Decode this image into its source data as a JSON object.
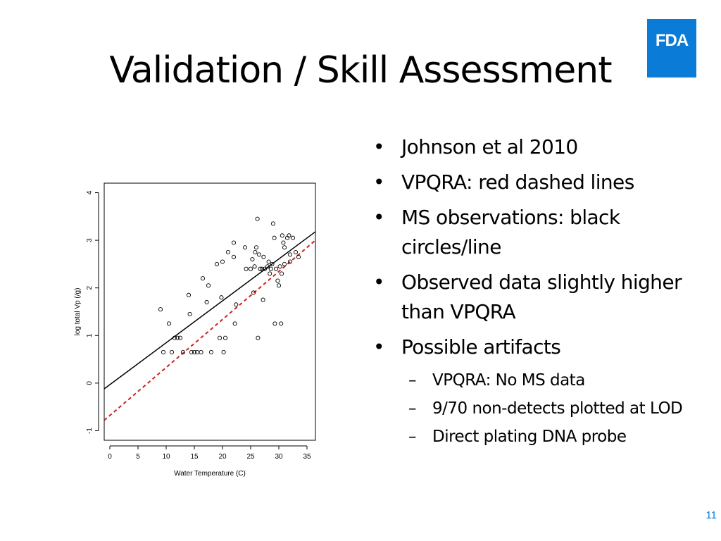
{
  "slide": {
    "title": "Validation / Skill Assessment",
    "logo_text": "FDA",
    "page_number": "11",
    "colors": {
      "logo_blue": "#0a7bd6",
      "fit_line": "#000000",
      "model_line": "#cc2222"
    }
  },
  "bullets": [
    {
      "level": 1,
      "text": "Johnson et al 2010"
    },
    {
      "level": 1,
      "text": "VPQRA: red dashed lines"
    },
    {
      "level": 1,
      "text": "MS observations: black circles/line"
    },
    {
      "level": 1,
      "text": "Observed data slightly higher than VPQRA"
    },
    {
      "level": 1,
      "text": "Possible artifacts"
    },
    {
      "level": 2,
      "text": "VPQRA: No MS data"
    },
    {
      "level": 2,
      "text": "9/70 non-detects plotted at LOD"
    },
    {
      "level": 2,
      "text": "Direct plating DNA probe"
    }
  ],
  "chart_data": {
    "type": "scatter",
    "xlabel": "Water Temperature (C)",
    "ylabel": "log total Vp (/g)",
    "xlim": [
      -1,
      36.5
    ],
    "ylim": [
      -1.2,
      4.2
    ],
    "x_ticks": [
      0,
      5,
      10,
      15,
      20,
      25,
      30,
      35
    ],
    "y_ticks": [
      -1,
      0,
      1,
      2,
      3,
      4
    ],
    "grid": false,
    "points": [
      [
        9,
        1.55
      ],
      [
        9.5,
        0.65
      ],
      [
        10.5,
        1.25
      ],
      [
        11,
        0.65
      ],
      [
        11.5,
        0.95
      ],
      [
        12,
        0.95
      ],
      [
        12.5,
        0.95
      ],
      [
        13,
        0.65
      ],
      [
        14,
        1.85
      ],
      [
        14.2,
        1.45
      ],
      [
        14.5,
        0.65
      ],
      [
        15,
        0.65
      ],
      [
        15.5,
        0.65
      ],
      [
        16.2,
        0.65
      ],
      [
        16.5,
        2.2
      ],
      [
        17.2,
        1.7
      ],
      [
        17.5,
        2.05
      ],
      [
        18,
        0.65
      ],
      [
        19,
        2.5
      ],
      [
        19.5,
        0.95
      ],
      [
        19.8,
        1.8
      ],
      [
        20,
        2.55
      ],
      [
        20.2,
        0.65
      ],
      [
        20.5,
        0.95
      ],
      [
        21,
        2.75
      ],
      [
        22,
        2.65
      ],
      [
        22,
        2.95
      ],
      [
        22.2,
        1.25
      ],
      [
        22.4,
        1.65
      ],
      [
        24,
        2.85
      ],
      [
        24.2,
        2.4
      ],
      [
        25,
        2.4
      ],
      [
        25.3,
        2.6
      ],
      [
        25.5,
        1.9
      ],
      [
        25.7,
        2.45
      ],
      [
        25.8,
        2.75
      ],
      [
        26,
        2.85
      ],
      [
        26.2,
        3.45
      ],
      [
        26.3,
        0.95
      ],
      [
        26.5,
        2.7
      ],
      [
        26.7,
        2.4
      ],
      [
        27,
        2.4
      ],
      [
        27.2,
        1.75
      ],
      [
        27.3,
        2.65
      ],
      [
        28,
        2.45
      ],
      [
        28.2,
        2.55
      ],
      [
        28.4,
        2.3
      ],
      [
        28.6,
        2.4
      ],
      [
        28.8,
        2.5
      ],
      [
        29,
        3.35
      ],
      [
        29.2,
        3.05
      ],
      [
        29.3,
        1.25
      ],
      [
        29.5,
        2.4
      ],
      [
        29.8,
        2.15
      ],
      [
        30,
        2.05
      ],
      [
        30.2,
        2.45
      ],
      [
        30.4,
        1.25
      ],
      [
        30.6,
        3.1
      ],
      [
        30.8,
        2.95
      ],
      [
        31,
        2.85
      ],
      [
        31,
        2.5
      ],
      [
        31.5,
        3.05
      ],
      [
        31.8,
        3.1
      ],
      [
        32,
        2.55
      ],
      [
        32,
        2.7
      ],
      [
        32.5,
        3.05
      ],
      [
        33,
        2.75
      ],
      [
        33.5,
        2.65
      ],
      [
        30.5,
        2.3
      ],
      [
        27.5,
        2.4
      ]
    ],
    "lines": [
      {
        "name": "MS observations",
        "style": "solid",
        "x": [
          -1,
          36.5
        ],
        "y": [
          -0.12,
          3.18
        ]
      },
      {
        "name": "VPQRA",
        "style": "dashed",
        "x": [
          -1,
          36.5
        ],
        "y": [
          -0.78,
          3.0
        ]
      }
    ]
  }
}
